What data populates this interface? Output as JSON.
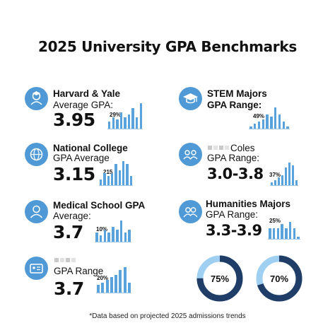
{
  "title": "2025 University GPA Benchmarks",
  "colors": {
    "accent": "#4f9ad6",
    "bar": "#5aa2dc",
    "donut_dark": "#1f3d66",
    "donut_light": "#9fd0f2"
  },
  "footnote": "*Data based on projected 2025 admissions trends",
  "cards": [
    {
      "icon": "graduate-icon",
      "line1": "Harvard & Yale",
      "line2": "Average GPA:",
      "value": "3.95",
      "pct": "29%"
    },
    {
      "icon": "graduation-cap-icon",
      "line1": "STEM Majors",
      "line2": "GPA Range:",
      "value": "",
      "pct": "49%"
    },
    {
      "icon": "globe-graduate-icon",
      "line1": "National College",
      "line2": "GPA Average",
      "value": "3.15",
      "pct": "215"
    },
    {
      "icon": "group-icon",
      "line1": "Coles",
      "line2": "GPA Range:",
      "value": "3.0-3.8",
      "pct": "37%"
    },
    {
      "icon": "person-icon",
      "line1": "Medical School GPA",
      "line2": "Average:",
      "value": "3.7",
      "pct": "10%"
    },
    {
      "icon": "people-icon",
      "line1": "Humanities Majors",
      "line2": "GPA Range:",
      "value": "3.3-3.9",
      "pct": "25%"
    },
    {
      "icon": "id-card-icon",
      "line1": "",
      "line2": "GPA Range",
      "value": "3.7",
      "pct": "20%"
    }
  ],
  "chart_data": [
    {
      "type": "bar",
      "title": "",
      "label": "29%",
      "values": [
        3,
        5,
        4,
        7,
        5,
        6,
        9,
        5,
        11
      ]
    },
    {
      "type": "bar",
      "title": "",
      "label": "49%",
      "values": [
        1,
        2,
        3,
        4,
        6,
        5,
        9,
        6,
        3,
        1
      ]
    },
    {
      "type": "bar",
      "title": "",
      "label": "215",
      "values": [
        2,
        4,
        3,
        4,
        7,
        5,
        8,
        7,
        3
      ]
    },
    {
      "type": "bar",
      "title": "",
      "label": "37%",
      "values": [
        1,
        2,
        3,
        4,
        7,
        9,
        8,
        2
      ]
    },
    {
      "type": "bar",
      "title": "",
      "label": "10%",
      "values": [
        3,
        2,
        4,
        3,
        5,
        4,
        7,
        3,
        4
      ]
    },
    {
      "type": "bar",
      "title": "",
      "label": "25%",
      "values": [
        5,
        5,
        5,
        7,
        5,
        8,
        5,
        1
      ]
    },
    {
      "type": "bar",
      "title": "",
      "label": "20%",
      "values": [
        3,
        4,
        5,
        6,
        7,
        9,
        10,
        4
      ]
    },
    {
      "type": "pie",
      "label": "75%",
      "value": 75
    },
    {
      "type": "pie",
      "label": "70%",
      "value": 70
    }
  ]
}
